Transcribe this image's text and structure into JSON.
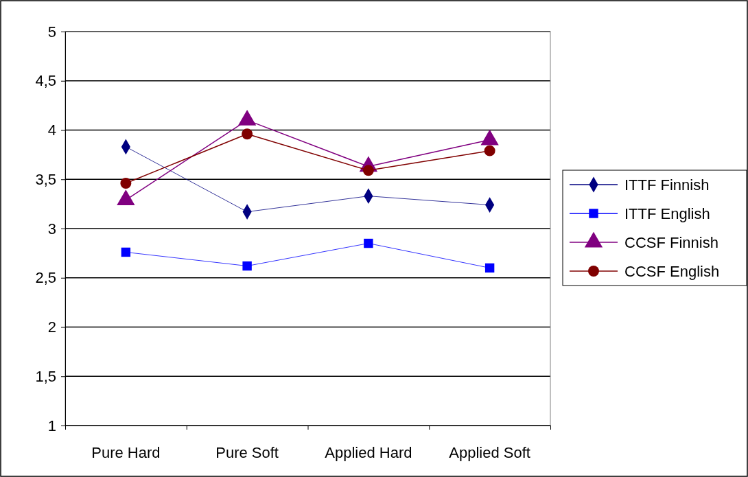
{
  "chart_data": {
    "type": "line",
    "categories": [
      "Pure Hard",
      "Pure Soft",
      "Applied Hard",
      "Applied Soft"
    ],
    "series": [
      {
        "name": "ITTF Finnish",
        "color": "#000080",
        "marker": "diamond",
        "values": [
          3.83,
          3.17,
          3.33,
          3.24
        ]
      },
      {
        "name": "ITTF English",
        "color": "#0000ff",
        "marker": "square",
        "values": [
          2.76,
          2.62,
          2.85,
          2.6
        ]
      },
      {
        "name": "CCSF Finnish",
        "color": "#800080",
        "marker": "triangle",
        "values": [
          3.29,
          4.1,
          3.63,
          3.9
        ]
      },
      {
        "name": "CCSF English",
        "color": "#800000",
        "marker": "circle",
        "values": [
          3.46,
          3.96,
          3.59,
          3.79
        ]
      }
    ],
    "ylim": [
      1,
      5
    ],
    "yticks": [
      1,
      {
        "value": 1.5,
        "label": "1,5"
      },
      2,
      {
        "value": 2.5,
        "label": "2,5"
      },
      3,
      {
        "value": 3.5,
        "label": "3,5"
      },
      4,
      {
        "value": 4.5,
        "label": "4,5"
      },
      5
    ],
    "grid": "y",
    "legend": "right"
  }
}
